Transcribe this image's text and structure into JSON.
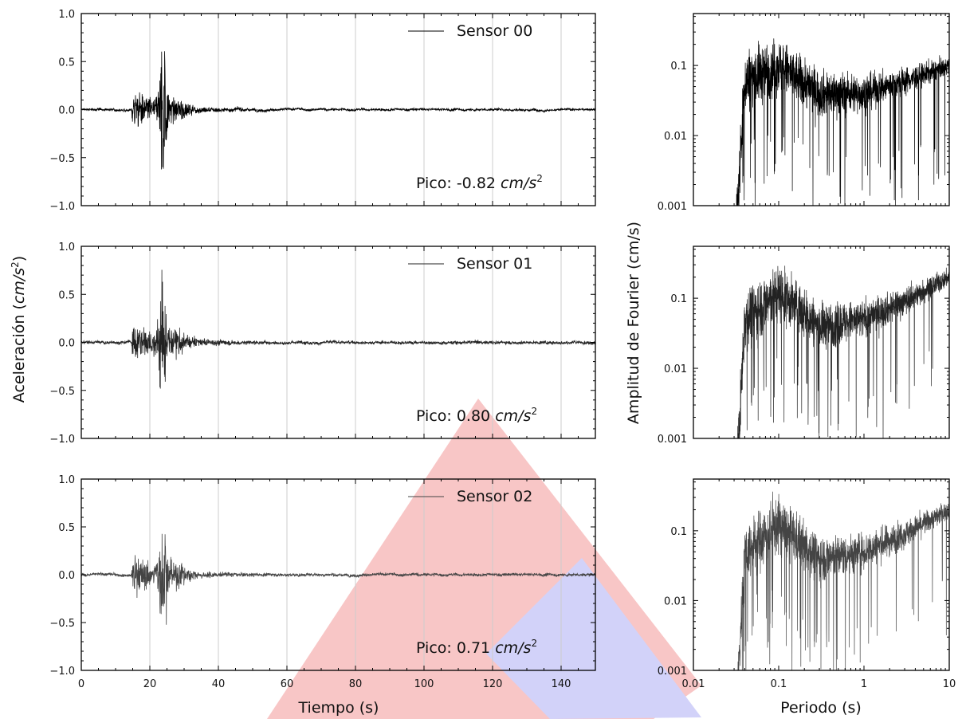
{
  "chart_data": [
    {
      "type": "line",
      "panel": "time",
      "series": [
        {
          "name": "Sensor 00",
          "color": "#000000"
        }
      ],
      "annotation_prefix": "Pico: ",
      "peak_value": "-0.82",
      "units_base": "cm/s",
      "units_exp": "2",
      "xlim": [
        0,
        150
      ],
      "ylim": [
        -1.0,
        1.0
      ],
      "yticks": [
        "1.0",
        "0.5",
        "0.0",
        "−0.5",
        "−1.0"
      ],
      "ytick_values": [
        1.0,
        0.5,
        0.0,
        -0.5,
        -1.0
      ],
      "event_onset_s": 14.6,
      "peak_time_s": 23.8,
      "peak_amplitude": 0.82,
      "noise_level": 0.012,
      "grid": "vertical",
      "legend_position": "top-right"
    },
    {
      "type": "line",
      "panel": "time",
      "series": [
        {
          "name": "Sensor 01",
          "color": "#222222"
        }
      ],
      "annotation_prefix": "Pico: ",
      "peak_value": "0.80",
      "units_base": "cm/s",
      "units_exp": "2",
      "xlim": [
        0,
        150
      ],
      "ylim": [
        -1.0,
        1.0
      ],
      "yticks": [
        "1.0",
        "0.5",
        "0.0",
        "−0.5",
        "−1.0"
      ],
      "ytick_values": [
        1.0,
        0.5,
        0.0,
        -0.5,
        -1.0
      ],
      "event_onset_s": 14.6,
      "peak_time_s": 23.8,
      "peak_amplitude": 0.8,
      "noise_level": 0.016,
      "grid": "vertical",
      "legend_position": "top-right"
    },
    {
      "type": "line",
      "panel": "time",
      "series": [
        {
          "name": "Sensor 02",
          "color": "#444444"
        }
      ],
      "annotation_prefix": "Pico: ",
      "peak_value": "0.71",
      "units_base": "cm/s",
      "units_exp": "2",
      "xlim": [
        0,
        150
      ],
      "ylim": [
        -1.0,
        1.0
      ],
      "yticks": [
        "1.0",
        "0.5",
        "0.0",
        "−0.5",
        "−1.0"
      ],
      "ytick_values": [
        1.0,
        0.5,
        0.0,
        -0.5,
        -1.0
      ],
      "xticks": [
        "0",
        "20",
        "40",
        "60",
        "80",
        "100",
        "120",
        "140"
      ],
      "xtick_values": [
        0,
        20,
        40,
        60,
        80,
        100,
        120,
        140
      ],
      "event_onset_s": 14.6,
      "peak_time_s": 23.8,
      "peak_amplitude": 0.71,
      "noise_level": 0.014,
      "grid": "vertical",
      "legend_position": "top-right"
    },
    {
      "type": "line",
      "panel": "fourier",
      "series": [
        {
          "name": "Sensor 00",
          "color": "#000000"
        }
      ],
      "xscale": "log",
      "yscale": "log",
      "xlim": [
        0.01,
        10
      ],
      "ylim": [
        0.001,
        0.55
      ],
      "yticks": [
        "0.1",
        "0.01",
        "0.001"
      ],
      "ytick_values": [
        0.1,
        0.01,
        0.001
      ],
      "cutoff_period_s": 0.032,
      "spectrum_shape": [
        [
          0.033,
          0.001
        ],
        [
          0.04,
          0.06
        ],
        [
          0.1,
          0.1
        ],
        [
          0.3,
          0.04
        ],
        [
          1,
          0.04
        ],
        [
          3,
          0.06
        ],
        [
          10,
          0.1
        ]
      ]
    },
    {
      "type": "line",
      "panel": "fourier",
      "series": [
        {
          "name": "Sensor 01",
          "color": "#222222"
        }
      ],
      "xscale": "log",
      "yscale": "log",
      "xlim": [
        0.01,
        10
      ],
      "ylim": [
        0.001,
        0.55
      ],
      "yticks": [
        "0.1",
        "0.01",
        "0.001"
      ],
      "ytick_values": [
        0.1,
        0.01,
        0.001
      ],
      "cutoff_period_s": 0.033,
      "spectrum_shape": [
        [
          0.034,
          0.001
        ],
        [
          0.04,
          0.05
        ],
        [
          0.1,
          0.12
        ],
        [
          0.3,
          0.04
        ],
        [
          1,
          0.05
        ],
        [
          3,
          0.09
        ],
        [
          10,
          0.2
        ]
      ]
    },
    {
      "type": "line",
      "panel": "fourier",
      "series": [
        {
          "name": "Sensor 02",
          "color": "#444444"
        }
      ],
      "xscale": "log",
      "yscale": "log",
      "xlim": [
        0.01,
        10
      ],
      "ylim": [
        0.001,
        0.55
      ],
      "yticks": [
        "0.1",
        "0.01",
        "0.001"
      ],
      "ytick_values": [
        0.1,
        0.01,
        0.001
      ],
      "xticks": [
        "0.01",
        "0.1",
        "1",
        "10"
      ],
      "xtick_values": [
        0.01,
        0.1,
        1,
        10
      ],
      "cutoff_period_s": 0.033,
      "spectrum_shape": [
        [
          0.034,
          0.001
        ],
        [
          0.04,
          0.05
        ],
        [
          0.1,
          0.12
        ],
        [
          0.3,
          0.04
        ],
        [
          1,
          0.05
        ],
        [
          3,
          0.09
        ],
        [
          10,
          0.2
        ]
      ]
    }
  ],
  "labels": {
    "time_xlabel": "Tiempo (s)",
    "time_ylabel": "Aceleración (",
    "time_ylabel_units": "cm/s",
    "time_ylabel_exp": "2",
    "time_ylabel_close": ")",
    "fourier_xlabel": "Periodo (s)",
    "fourier_ylabel": "Amplitud de Fourier (cm/s)"
  },
  "watermark_colors": {
    "red": "#f6b3b3",
    "blue": "#c4c4f7"
  }
}
